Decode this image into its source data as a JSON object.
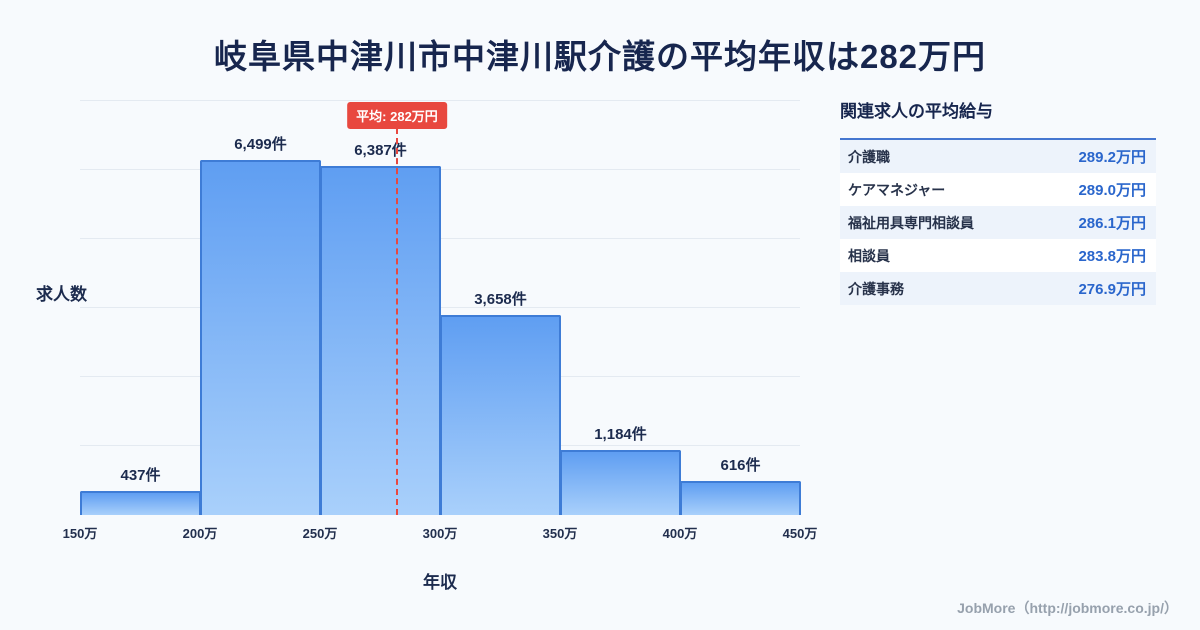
{
  "title": "岐阜県中津川市中津川駅介護の平均年収は282万円",
  "chart_data": {
    "type": "bar",
    "title": "岐阜県中津川市中津川駅介護の平均年収は282万円",
    "xlabel": "年収",
    "ylabel": "求人数",
    "x_tick_labels": [
      "150万",
      "200万",
      "250万",
      "300万",
      "350万",
      "400万",
      "450万"
    ],
    "bin_edges_man_yen": [
      150,
      200,
      250,
      300,
      350,
      400,
      450
    ],
    "values": [
      437,
      6499,
      6387,
      3658,
      1184,
      616
    ],
    "bar_labels": [
      "437件",
      "6,499件",
      "6,387件",
      "3,658件",
      "1,184件",
      "616件"
    ],
    "average": {
      "label": "平均: 282万円",
      "value_man_yen": 282
    },
    "x_range": [
      150,
      450
    ],
    "ylim": [
      0,
      7600
    ],
    "grid": true,
    "legend": false,
    "colors": {
      "bar_top": "#5f9ef2",
      "bar_bottom": "#a9d0fb",
      "bar_border": "#3e7cd6",
      "average_line": "#e8483f",
      "grid_line": "#e4eaf1",
      "title_text": "#17264e",
      "value_text": "#2a66cc"
    }
  },
  "side_panel": {
    "heading": "関連求人の平均給与",
    "rows": [
      {
        "label": "介護職",
        "value": "289.2万円"
      },
      {
        "label": "ケアマネジャー",
        "value": "289.0万円"
      },
      {
        "label": "福祉用具専門相談員",
        "value": "286.1万円"
      },
      {
        "label": "相談員",
        "value": "283.8万円"
      },
      {
        "label": "介護事務",
        "value": "276.9万円"
      }
    ]
  },
  "footer": {
    "credit": "JobMore（http://jobmore.co.jp/）"
  }
}
